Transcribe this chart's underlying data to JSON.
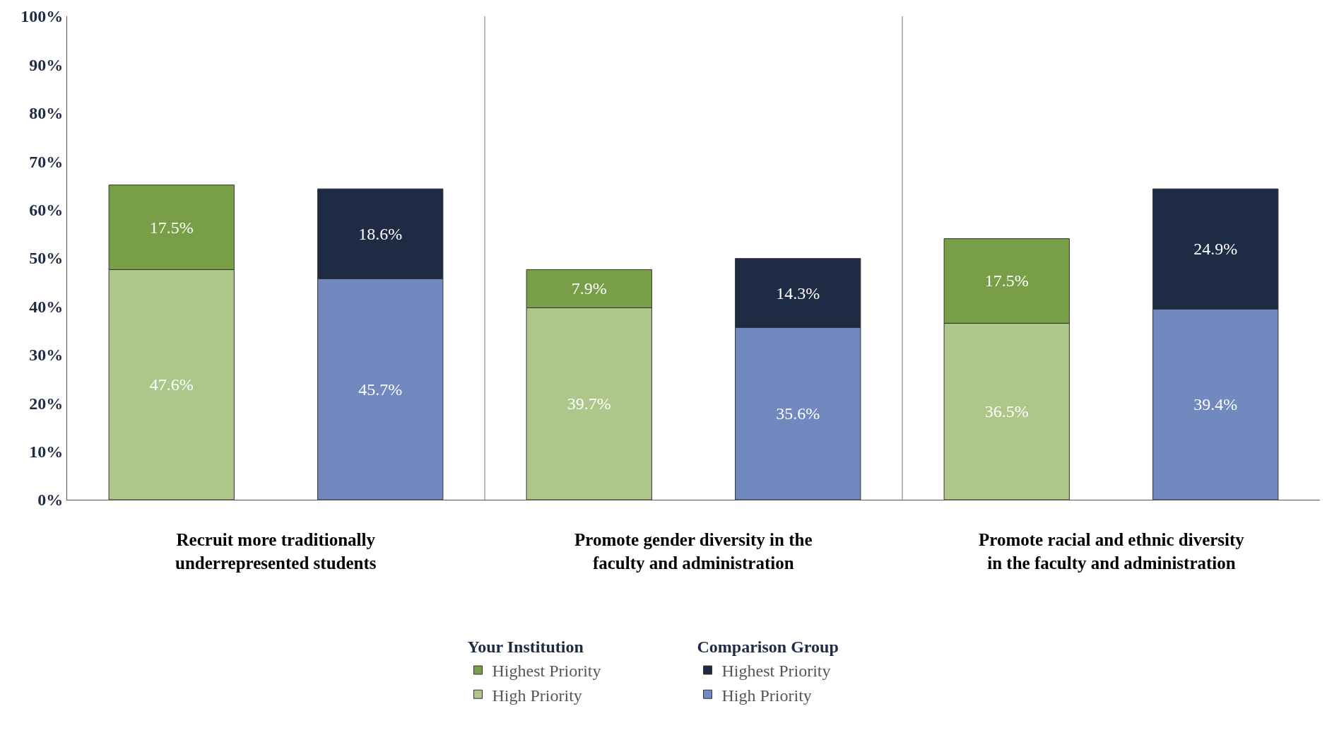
{
  "chart_data": {
    "type": "bar",
    "stacked": true,
    "categories": [
      null,
      null,
      null,
      null,
      null,
      null
    ],
    "annotations": [
      "Recruit more traditionally underrepresented students",
      "Promote gender diversity in the faculty and administration",
      "Promote racial and ethnic diversity in the faculty and administration",
      "Your Institution",
      "Comparison Group"
    ],
    "series": [
      {
        "name": "High Priority",
        "color": "#adc78b",
        "values": [
          47.6,
          null,
          39.7,
          null,
          36.5,
          null
        ],
        "value_labels": [
          "47.6%",
          null,
          "39.7%",
          null,
          "36.5%",
          null
        ]
      },
      {
        "name": "Highest Priority",
        "color": "#789f48",
        "values": [
          17.5,
          null,
          7.9,
          null,
          17.5,
          null
        ],
        "value_labels": [
          "17.5%",
          null,
          "7.9%",
          null,
          "17.5%",
          null
        ]
      },
      {
        "name": "High Priority",
        "color": "#7289c0",
        "values": [
          null,
          45.7,
          null,
          35.6,
          null,
          39.4
        ],
        "value_labels": [
          null,
          "45.7%",
          null,
          "35.6%",
          null,
          "39.4%"
        ]
      },
      {
        "name": "Highest Priority",
        "color": "#1f2a44",
        "values": [
          null,
          18.6,
          null,
          14.3,
          null,
          24.9
        ],
        "value_labels": [
          null,
          "18.6%",
          null,
          "14.3%",
          null,
          "24.9%"
        ]
      }
    ],
    "ylim": [
      0,
      100
    ],
    "yticks": [
      {
        "value": 0,
        "label": "0%"
      },
      {
        "value": 10,
        "label": "10%"
      },
      {
        "value": 20,
        "label": "20%"
      },
      {
        "value": 30,
        "label": "30%"
      },
      {
        "value": 40,
        "label": "40%"
      },
      {
        "value": 50,
        "label": "50%"
      },
      {
        "value": 60,
        "label": "60%"
      },
      {
        "value": 70,
        "label": "70%"
      },
      {
        "value": 80,
        "label": "80%"
      },
      {
        "value": 90,
        "label": "90%"
      },
      {
        "value": 100,
        "label": "100%"
      }
    ],
    "legend": "bottom"
  }
}
